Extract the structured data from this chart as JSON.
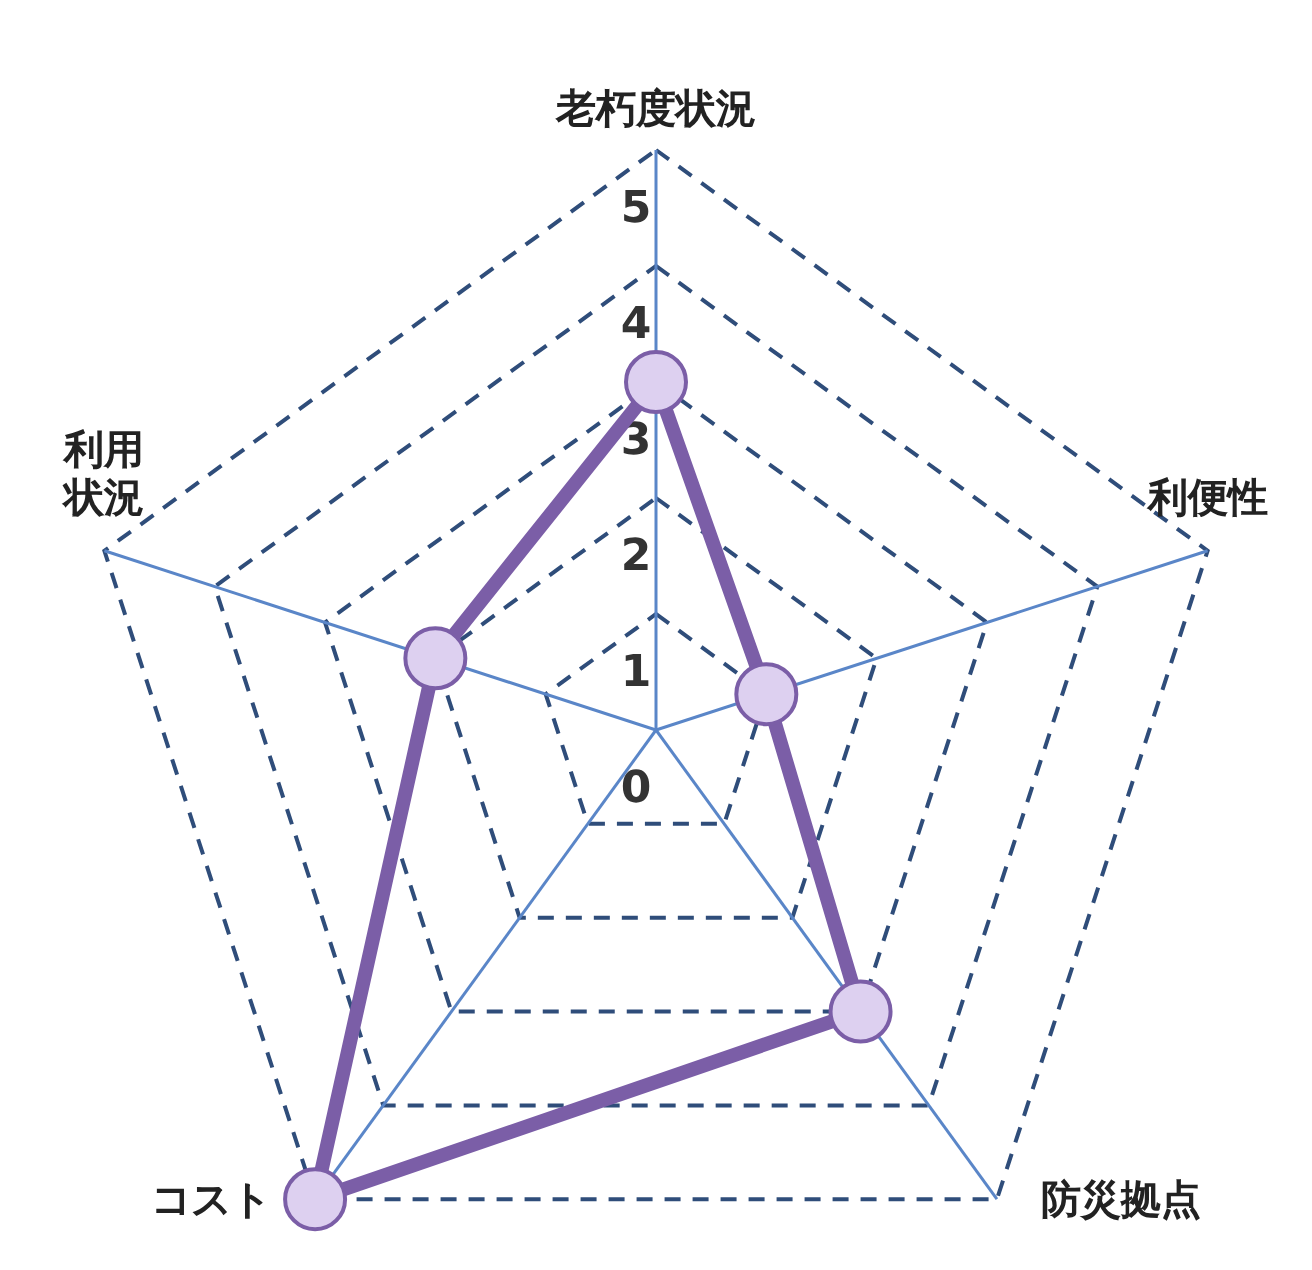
{
  "chart_data": {
    "type": "radar",
    "categories": [
      "老朽度状況",
      "利便性",
      "防災拠点",
      "コスト",
      "利用状況"
    ],
    "series": [
      {
        "color": "#7b5ea7",
        "values": [
          3,
          1,
          3,
          5,
          2
        ]
      }
    ],
    "ylim": [
      0,
      5
    ],
    "yticks": [
      0,
      1,
      2,
      3,
      4,
      5
    ],
    "grid": true,
    "marker": "circle"
  }
}
